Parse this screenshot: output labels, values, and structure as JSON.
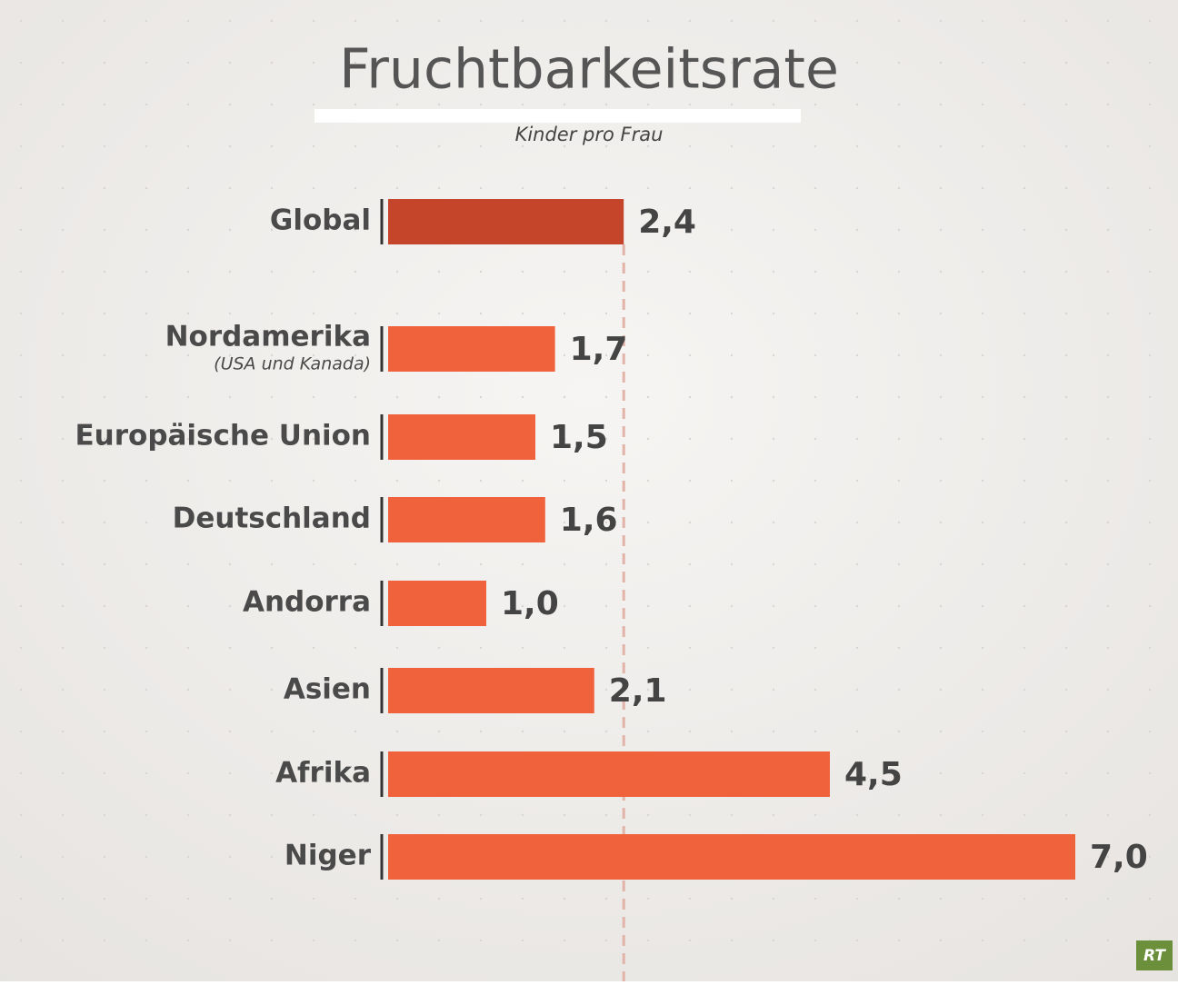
{
  "chart_data": {
    "type": "hbar",
    "title": "Fruchtbarkeitsrate",
    "subtitle": "Kinder pro Frau",
    "categories": [
      "Global",
      "Nordamerika",
      "Europäische Union",
      "Deutschland",
      "Andorra",
      "Asien",
      "Afrika",
      "Niger"
    ],
    "category_notes": [
      null,
      "(USA und Kanada)",
      null,
      null,
      null,
      null,
      null,
      null
    ],
    "values": [
      2.4,
      1.7,
      1.5,
      1.6,
      1.0,
      2.1,
      4.5,
      7.0
    ],
    "value_labels": [
      "2,4",
      "1,7",
      "1,5",
      "1,6",
      "1,0",
      "2,1",
      "4,5",
      "7,0"
    ],
    "colors": [
      "#c5452a",
      "#f0623c",
      "#f0623c",
      "#f0623c",
      "#f0623c",
      "#f0623c",
      "#f0623c",
      "#f0623c"
    ],
    "reference_line": true
  },
  "logo": "RT"
}
